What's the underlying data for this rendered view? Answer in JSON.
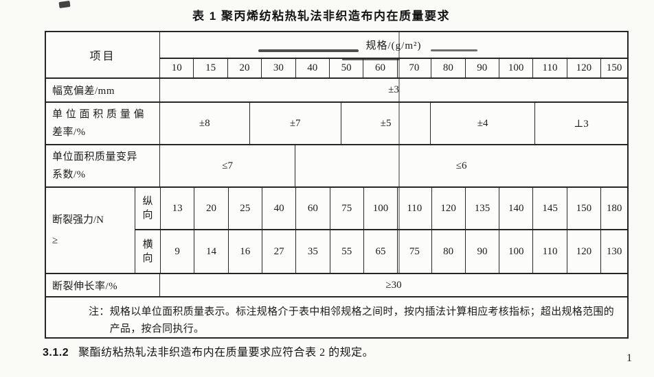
{
  "title": "表 1  聚丙烯纺粘热轧法非织造布内在质量要求",
  "table": {
    "item_header": "项目",
    "spec_header": "规格/(g/m²)",
    "specs": [
      "10",
      "15",
      "20",
      "30",
      "40",
      "50",
      "60",
      "70",
      "80",
      "90",
      "100",
      "110",
      "120",
      "150"
    ],
    "width_dev": {
      "label": "幅宽偏差/mm",
      "value": "±3"
    },
    "mass_dev": {
      "label_line1": "单 位 面 积 质 量 偏",
      "label_line2": "差率/%",
      "values": [
        "±8",
        "±7",
        "±5",
        "±4",
        "⊥3"
      ]
    },
    "mass_cv": {
      "label_line1": "单位面积质量变异",
      "label_line2": "系数/%",
      "values": [
        "≤7",
        "≤6"
      ]
    },
    "strength": {
      "label_line1": "断裂强力/N",
      "label_line2": "≥",
      "md_label": "纵向",
      "cd_label": "横向",
      "md_values": [
        "13",
        "20",
        "25",
        "40",
        "60",
        "75",
        "100",
        "110",
        "120",
        "135",
        "140",
        "145",
        "150",
        "180"
      ],
      "cd_values": [
        "9",
        "14",
        "16",
        "27",
        "35",
        "55",
        "65",
        "75",
        "80",
        "90",
        "100",
        "110",
        "120",
        "130"
      ]
    },
    "elongation": {
      "label": "断裂伸长率/%",
      "value": "≥30"
    },
    "note_label": "注：",
    "note_text": "规格以单位面积质量表示。标注规格介于表中相邻规格之间时，按内插法计算相应考核指标；超出规格范围的产品，按合同执行。"
  },
  "clause": {
    "no": "3.1.2",
    "text": "聚酯纺粘热轧法非织造布内在质量要求应符合表 2 的规定。"
  },
  "page_number": "1"
}
